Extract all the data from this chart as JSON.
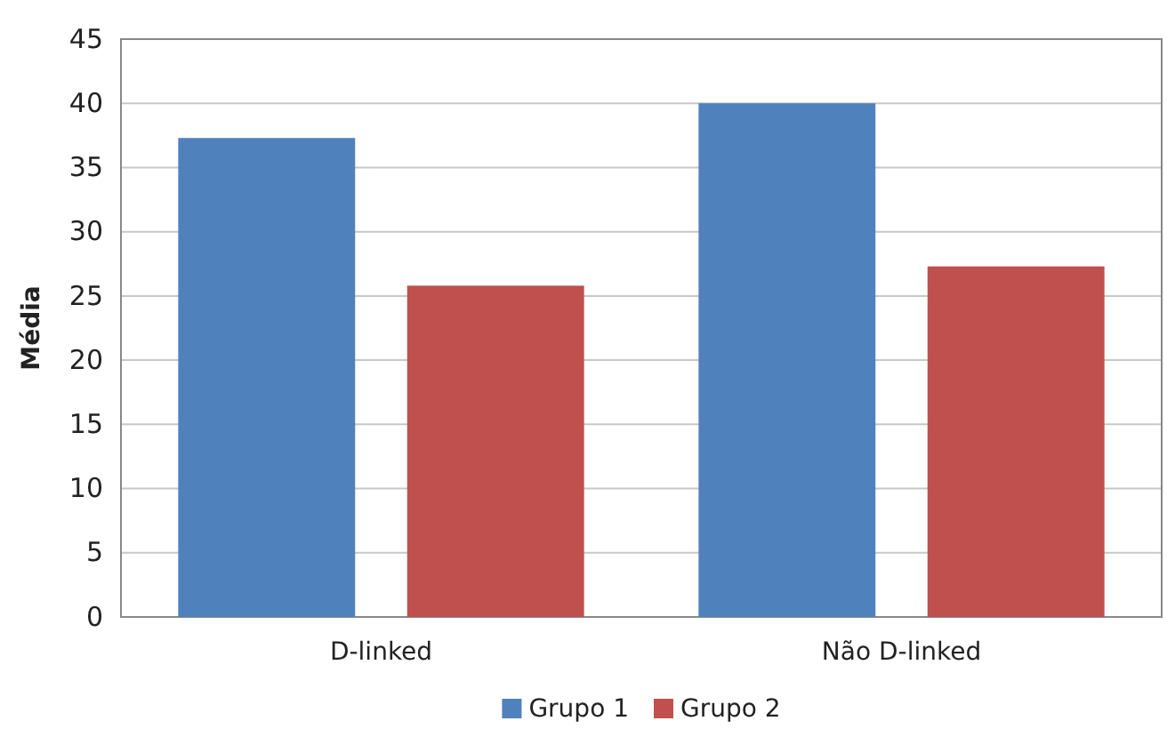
{
  "chart_data": {
    "type": "bar",
    "ylabel": "Média",
    "categories": [
      "D-linked",
      "Não D-linked"
    ],
    "series": [
      {
        "name": "Grupo 1",
        "color": "#4f81bd",
        "values": [
          37.3,
          40
        ]
      },
      {
        "name": "Grupo 2",
        "color": "#c0504d",
        "values": [
          25.8,
          27.3
        ]
      }
    ],
    "ylim": [
      0,
      45
    ],
    "yticks": [
      0,
      5,
      10,
      15,
      20,
      25,
      30,
      35,
      40,
      45
    ],
    "grid": "y",
    "legend": "bottom"
  }
}
